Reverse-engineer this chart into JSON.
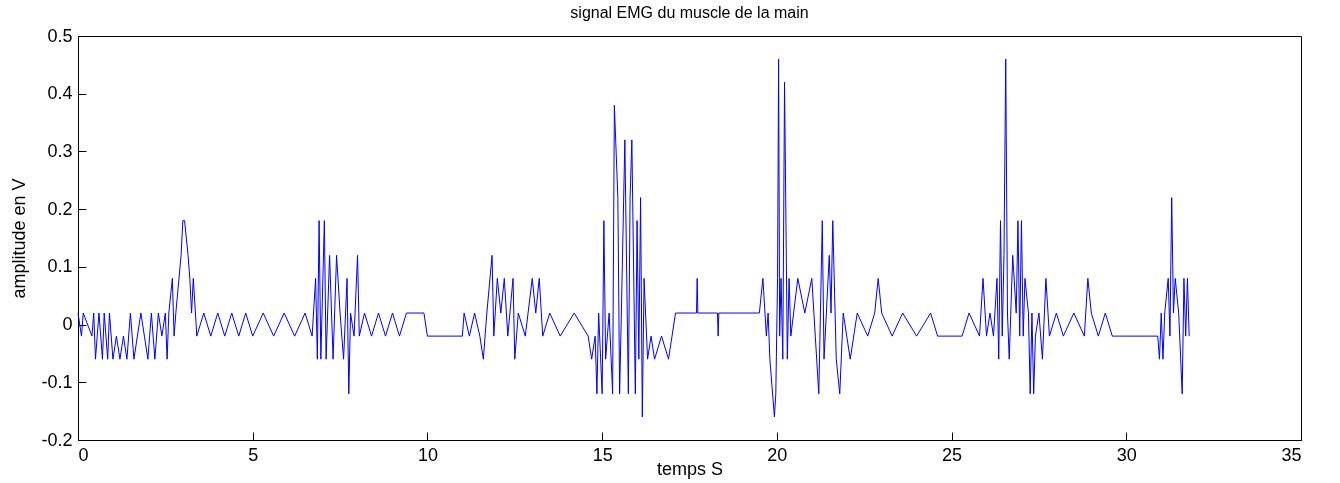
{
  "chart_data": {
    "type": "line",
    "title": "signal  EMG du muscle de la main",
    "xlabel": "temps S",
    "ylabel": "amplitude en V",
    "x": [
      0,
      0.1,
      0.15,
      0.4,
      0.45,
      0.5,
      0.6,
      0.7,
      0.75,
      0.85,
      0.9,
      1.0,
      1.1,
      1.2,
      1.3,
      1.4,
      1.5,
      1.6,
      1.7,
      1.8,
      1.9,
      2.0,
      2.1,
      2.2,
      2.3,
      2.4,
      2.5,
      2.55,
      2.6,
      2.7,
      2.75,
      2.8,
      2.95,
      3.0,
      3.05,
      3.15,
      3.2,
      3.25,
      3.3,
      3.4,
      3.6,
      3.8,
      4.0,
      4.2,
      4.4,
      4.6,
      4.8,
      5.0,
      5.3,
      5.6,
      5.9,
      6.2,
      6.5,
      6.7,
      6.8,
      6.85,
      6.9,
      6.95,
      7.05,
      7.1,
      7.2,
      7.3,
      7.4,
      7.5,
      7.6,
      7.7,
      7.75,
      7.8,
      7.9,
      8.0,
      8.05,
      8.2,
      8.4,
      8.6,
      8.8,
      9.0,
      9.2,
      9.4,
      9.5,
      9.9,
      10.0,
      10.5,
      11.0,
      11.05,
      11.2,
      11.35,
      11.5,
      11.6,
      11.7,
      11.85,
      11.9,
      12.0,
      12.1,
      12.2,
      12.3,
      12.45,
      12.5,
      12.6,
      12.8,
      13.0,
      13.1,
      13.2,
      13.3,
      13.5,
      13.8,
      14.2,
      14.6,
      14.7,
      14.8,
      14.85,
      14.9,
      15.0,
      15.05,
      15.1,
      15.2,
      15.3,
      15.35,
      15.45,
      15.5,
      15.55,
      15.65,
      15.75,
      15.8,
      15.85,
      15.95,
      16.0,
      16.05,
      16.1,
      16.15,
      16.2,
      16.3,
      16.4,
      16.5,
      16.7,
      16.9,
      17.0,
      17.1,
      17.7,
      17.72,
      17.74,
      18.3,
      18.32,
      18.34,
      19.5,
      19.6,
      19.7,
      19.75,
      19.8,
      19.93,
      19.97,
      20.02,
      20.05,
      20.08,
      20.12,
      20.17,
      20.22,
      20.3,
      20.35,
      20.4,
      20.6,
      20.8,
      21.0,
      21.1,
      21.2,
      21.3,
      21.35,
      21.5,
      21.55,
      21.6,
      21.7,
      21.8,
      21.9,
      22.0,
      22.1,
      22.3,
      22.6,
      22.8,
      22.9,
      23.0,
      23.3,
      23.6,
      24.0,
      24.4,
      24.6,
      25.3,
      25.5,
      25.8,
      25.9,
      26.0,
      26.1,
      26.2,
      26.3,
      26.35,
      26.4,
      26.45,
      26.5,
      26.55,
      26.6,
      26.65,
      26.75,
      26.85,
      26.9,
      26.95,
      27.0,
      27.05,
      27.1,
      27.2,
      27.25,
      27.3,
      27.35,
      27.4,
      27.5,
      27.6,
      27.7,
      27.8,
      28.0,
      28.2,
      28.5,
      28.8,
      28.9,
      29.0,
      29.2,
      29.4,
      29.6,
      29.8,
      30.9,
      30.95,
      31.0,
      31.05,
      31.1,
      31.2,
      31.25,
      31.3,
      31.35,
      31.4,
      31.5,
      31.6,
      31.65,
      31.7,
      31.75,
      31.8
    ],
    "values": [
      0.02,
      -0.02,
      0.02,
      -0.02,
      0.02,
      -0.06,
      0.02,
      -0.06,
      0.02,
      -0.06,
      0.02,
      -0.06,
      -0.02,
      -0.06,
      -0.02,
      -0.06,
      0.02,
      -0.06,
      -0.02,
      0.02,
      -0.02,
      -0.06,
      0.02,
      -0.06,
      0.02,
      -0.02,
      0.02,
      -0.06,
      0.02,
      0.08,
      -0.02,
      0.02,
      0.12,
      0.18,
      0.18,
      0.12,
      0.08,
      0.02,
      0.08,
      -0.02,
      0.02,
      -0.02,
      0.02,
      -0.02,
      0.02,
      -0.02,
      0.02,
      -0.02,
      0.02,
      -0.02,
      0.02,
      -0.02,
      0.02,
      -0.02,
      0.08,
      -0.06,
      0.18,
      -0.06,
      0.18,
      -0.06,
      0.12,
      -0.06,
      0.12,
      0.02,
      -0.06,
      0.08,
      -0.12,
      0.02,
      -0.02,
      0.12,
      -0.02,
      0.02,
      -0.02,
      0.02,
      -0.02,
      0.02,
      -0.02,
      0.02,
      0.02,
      0.02,
      -0.02,
      -0.02,
      -0.02,
      0.02,
      -0.02,
      0.02,
      -0.02,
      -0.06,
      0.02,
      0.12,
      -0.02,
      0.08,
      0.02,
      0.08,
      -0.02,
      0.08,
      -0.06,
      0.02,
      -0.02,
      0.08,
      0.02,
      0.08,
      -0.02,
      0.02,
      -0.02,
      0.02,
      -0.02,
      -0.06,
      -0.02,
      -0.12,
      0.02,
      -0.12,
      0.18,
      -0.06,
      0.02,
      -0.12,
      0.38,
      0.22,
      -0.12,
      0.02,
      0.32,
      -0.12,
      0.22,
      0.32,
      -0.12,
      0.18,
      -0.06,
      0.22,
      -0.16,
      0.08,
      -0.06,
      -0.02,
      -0.06,
      -0.02,
      -0.06,
      -0.02,
      0.02,
      0.02,
      0.08,
      0.02,
      0.02,
      -0.02,
      0.02,
      0.02,
      0.08,
      -0.02,
      0.02,
      -0.06,
      -0.16,
      -0.12,
      0.08,
      0.46,
      -0.02,
      0.08,
      -0.06,
      0.42,
      -0.06,
      0.08,
      -0.02,
      0.08,
      0.02,
      0.08,
      -0.02,
      -0.12,
      0.18,
      -0.06,
      0.12,
      0.02,
      0.18,
      -0.06,
      -0.12,
      0.02,
      -0.02,
      -0.06,
      0.02,
      -0.02,
      0.02,
      0.08,
      0.02,
      -0.02,
      0.02,
      -0.02,
      0.02,
      -0.02,
      -0.02,
      0.02,
      -0.02,
      0.08,
      -0.02,
      0.02,
      -0.02,
      0.08,
      -0.06,
      0.18,
      -0.02,
      0.12,
      0.46,
      0.02,
      -0.06,
      0.12,
      0.02,
      0.18,
      -0.02,
      0.18,
      -0.02,
      0.08,
      0.02,
      -0.12,
      0.02,
      -0.12,
      -0.02,
      0.02,
      -0.06,
      0.08,
      -0.02,
      0.02,
      -0.02,
      0.02,
      -0.02,
      0.08,
      0.02,
      -0.02,
      0.02,
      -0.02,
      -0.02,
      -0.02,
      -0.06,
      0.02,
      -0.06,
      0.02,
      0.08,
      -0.02,
      0.22,
      0.02,
      0.08,
      0.02,
      -0.12,
      0.08,
      -0.02,
      0.08,
      -0.02
    ],
    "color": "#0000ff",
    "xlim": [
      0,
      35
    ],
    "xticks": [
      0,
      5,
      10,
      15,
      20,
      25,
      30,
      35
    ],
    "ylim": [
      -0.2,
      0.5
    ],
    "yticks": [
      {
        "value": -0.2,
        "label": "-0.2"
      },
      {
        "value": -0.1,
        "label": "-0.1"
      },
      {
        "value": 0,
        "label": "0"
      },
      {
        "value": 0.1,
        "label": "0.1"
      },
      {
        "value": 0.2,
        "label": "0.2"
      },
      {
        "value": 0.3,
        "label": "0.3"
      },
      {
        "value": 0.4,
        "label": "0.4"
      },
      {
        "value": 0.5,
        "label": "0.5"
      }
    ]
  }
}
